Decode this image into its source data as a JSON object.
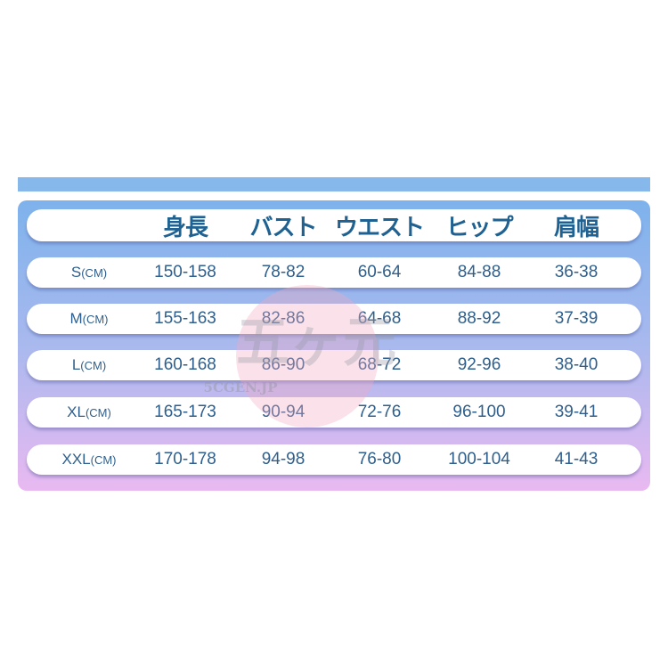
{
  "header": [
    "",
    "身長",
    "バスト",
    "ウエスト",
    "ヒップ",
    "肩幅"
  ],
  "rows": [
    {
      "size": "S",
      "unit": "(CM)",
      "values": [
        "150-158",
        "78-82",
        "60-64",
        "84-88",
        "36-38"
      ]
    },
    {
      "size": "M",
      "unit": "(CM)",
      "values": [
        "155-163",
        "82-86",
        "64-68",
        "88-92",
        "37-39"
      ]
    },
    {
      "size": "L",
      "unit": "(CM)",
      "values": [
        "160-168",
        "86-90",
        "68-72",
        "92-96",
        "38-40"
      ]
    },
    {
      "size": "XL",
      "unit": "(CM)",
      "values": [
        "165-173",
        "90-94",
        "72-76",
        "96-100",
        "39-41"
      ]
    },
    {
      "size": "XXL",
      "unit": "(CM)",
      "values": [
        "170-178",
        "94-98",
        "76-80",
        "100-104",
        "41-43"
      ]
    }
  ],
  "watermark": {
    "text": "5CGEN.JP"
  },
  "colors": {
    "bar": "#86b8ec",
    "gradient_top": "#7eb2ec",
    "gradient_bottom": "#e9b9f1",
    "text": "#2f5f8c",
    "header_text": "#1f6291"
  }
}
